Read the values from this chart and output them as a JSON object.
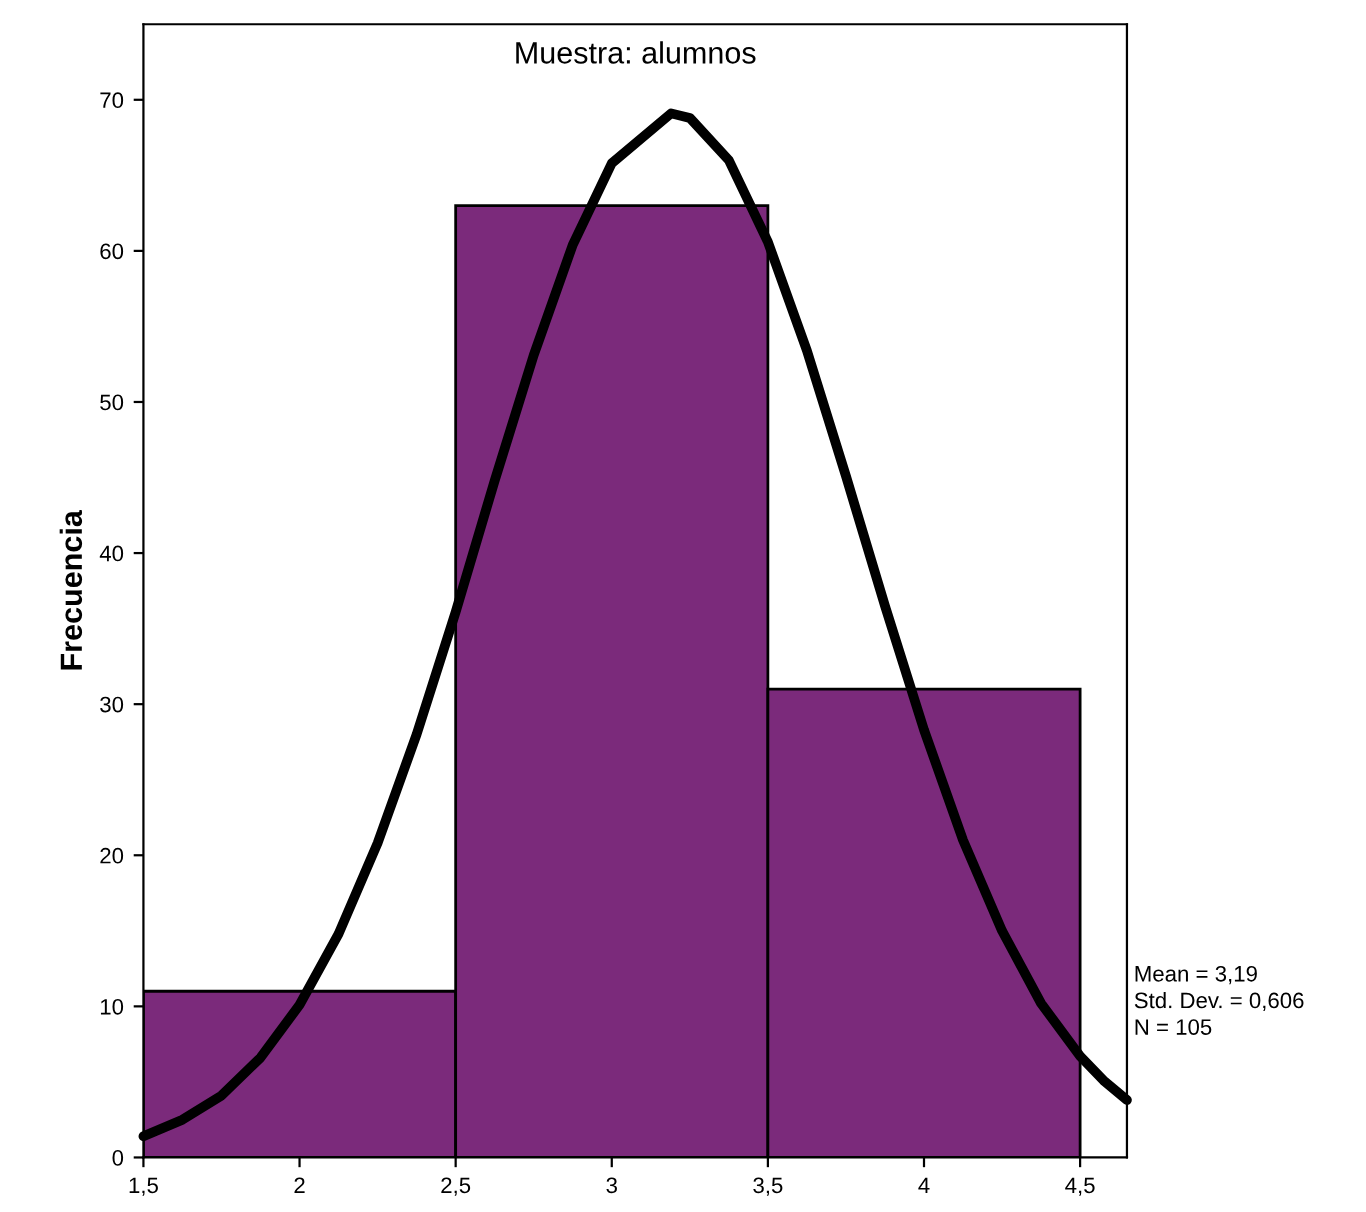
{
  "chart_data": {
    "type": "histogram",
    "title": "Muestra: alumnos",
    "ylabel": "Frecuencia",
    "bins": [
      1.5,
      2.5,
      3.5,
      4.5
    ],
    "values": [
      11,
      63,
      31
    ],
    "color": "#7b2a7b",
    "series": [
      {
        "type": "line",
        "color": "#000000",
        "x": [
          1.5,
          1.625,
          1.75,
          1.875,
          2.0,
          2.125,
          2.25,
          2.375,
          2.5,
          2.625,
          2.75,
          2.875,
          3.0,
          3.19,
          3.25,
          3.375,
          3.5,
          3.625,
          3.75,
          3.875,
          4.0,
          4.125,
          4.25,
          4.375,
          4.5,
          4.575,
          4.65
        ],
        "values": [
          1.4,
          2.5,
          4.1,
          6.6,
          10.1,
          14.8,
          20.8,
          28.0,
          36.1,
          44.8,
          53.1,
          60.4,
          65.8,
          69.1,
          68.8,
          66.0,
          60.6,
          53.4,
          45.1,
          36.5,
          28.3,
          21.0,
          15.0,
          10.2,
          6.7,
          5.1,
          3.8
        ]
      }
    ],
    "xlim": [
      1.5,
      4.65
    ],
    "ylim": [
      0,
      75
    ],
    "xticks": [
      {
        "value": 1.5,
        "label": "1,5"
      },
      2,
      {
        "value": 2.5,
        "label": "2,5"
      },
      3,
      {
        "value": 3.5,
        "label": "3,5"
      },
      4,
      {
        "value": 4.5,
        "label": "4,5"
      }
    ],
    "yticks": [
      0,
      10,
      20,
      30,
      40,
      50,
      60,
      70
    ],
    "annotations": [
      "Mean = 3,19",
      "Std. Dev. = 0,606",
      "N = 105"
    ],
    "grid": false,
    "legend": false
  }
}
